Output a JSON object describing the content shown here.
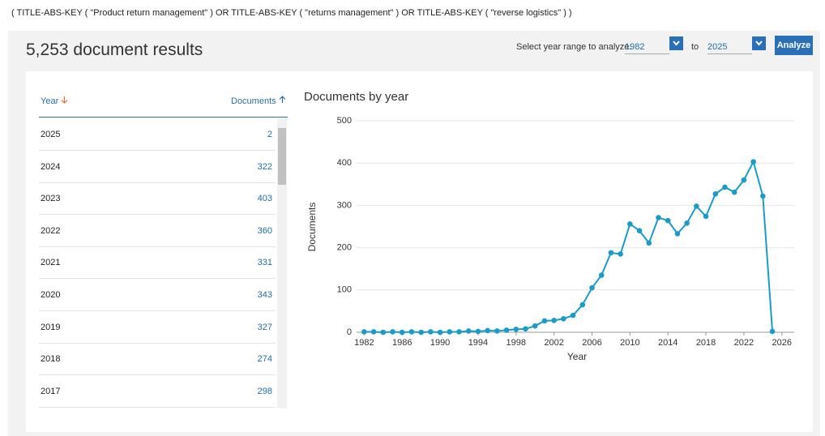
{
  "query": "( TITLE-ABS-KEY ( \"Product return management\" )  OR  TITLE-ABS-KEY ( \"returns management\" )  OR  TITLE-ABS-KEY ( \"reverse logistics\" ) )",
  "results_title": "5,253 document results",
  "year_range": {
    "label": "Select year range to analyze:",
    "from": "1982",
    "to_label": "to",
    "to": "2025",
    "button": "Analyze"
  },
  "table": {
    "headers": [
      "Year",
      "Documents"
    ],
    "rows": [
      [
        "2025",
        "2"
      ],
      [
        "2024",
        "322"
      ],
      [
        "2023",
        "403"
      ],
      [
        "2022",
        "360"
      ],
      [
        "2021",
        "331"
      ],
      [
        "2020",
        "343"
      ],
      [
        "2019",
        "327"
      ],
      [
        "2018",
        "274"
      ],
      [
        "2017",
        "298"
      ]
    ]
  },
  "chart_data": {
    "type": "line",
    "title": "Documents by year",
    "x_label": "Year",
    "y_label": "Documents",
    "x": [
      1982,
      1983,
      1984,
      1985,
      1986,
      1987,
      1988,
      1989,
      1990,
      1991,
      1992,
      1993,
      1994,
      1995,
      1996,
      1997,
      1998,
      1999,
      2000,
      2001,
      2002,
      2003,
      2004,
      2005,
      2006,
      2007,
      2008,
      2009,
      2010,
      2011,
      2012,
      2013,
      2014,
      2015,
      2016,
      2017,
      2018,
      2019,
      2020,
      2021,
      2022,
      2023,
      2024,
      2025
    ],
    "series": [
      {
        "name": "Documents",
        "color": "#1a9bcb",
        "values": [
          1,
          1,
          0,
          1,
          0,
          1,
          0,
          1,
          0,
          1,
          1,
          3,
          2,
          4,
          3,
          5,
          7,
          8,
          15,
          27,
          28,
          32,
          40,
          65,
          105,
          135,
          188,
          185,
          256,
          240,
          211,
          271,
          264,
          233,
          258,
          298,
          274,
          327,
          343,
          331,
          360,
          403,
          322,
          2
        ]
      }
    ],
    "xlim": [
      1981.2,
      2027.3
    ],
    "xticks": [
      1982,
      1986,
      1990,
      1994,
      1998,
      2002,
      2006,
      2010,
      2014,
      2018,
      2022,
      2026
    ],
    "ylim": [
      0,
      500
    ],
    "yticks": [
      0,
      100,
      200,
      300,
      400,
      500
    ],
    "grid": true
  }
}
